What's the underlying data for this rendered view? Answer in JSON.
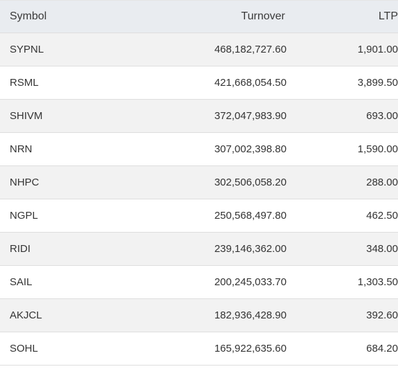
{
  "table": {
    "headers": {
      "symbol": "Symbol",
      "turnover": "Turnover",
      "ltp": "LTP"
    },
    "rows": [
      {
        "symbol": "SYPNL",
        "turnover": "468,182,727.60",
        "ltp": "1,901.00"
      },
      {
        "symbol": "RSML",
        "turnover": "421,668,054.50",
        "ltp": "3,899.50"
      },
      {
        "symbol": "SHIVM",
        "turnover": "372,047,983.90",
        "ltp": "693.00"
      },
      {
        "symbol": "NRN",
        "turnover": "307,002,398.80",
        "ltp": "1,590.00"
      },
      {
        "symbol": "NHPC",
        "turnover": "302,506,058.20",
        "ltp": "288.00"
      },
      {
        "symbol": "NGPL",
        "turnover": "250,568,497.80",
        "ltp": "462.50"
      },
      {
        "symbol": "RIDI",
        "turnover": "239,146,362.00",
        "ltp": "348.00"
      },
      {
        "symbol": "SAIL",
        "turnover": "200,245,033.70",
        "ltp": "1,303.50"
      },
      {
        "symbol": "AKJCL",
        "turnover": "182,936,428.90",
        "ltp": "392.60"
      },
      {
        "symbol": "SOHL",
        "turnover": "165,922,635.60",
        "ltp": "684.20"
      }
    ]
  }
}
